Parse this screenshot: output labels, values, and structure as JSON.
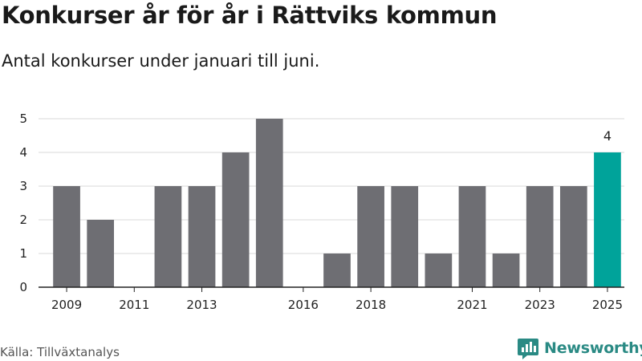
{
  "header": {
    "title": "Konkurser år för år i Rättviks kommun",
    "subtitle": "Antal konkurser under januari till juni."
  },
  "footer": {
    "source": "Källa: Tillväxtanalys",
    "brand": "Newsworthy",
    "brand_icon": "newsworthy-logo-icon"
  },
  "colors": {
    "bar": "#6e6e73",
    "highlight": "#00a39a",
    "grid": "#d9d9d9",
    "axis": "#222222",
    "brand": "#2a8a84"
  },
  "chart_data": {
    "type": "bar",
    "categories": [
      "2009",
      "2010",
      "2011",
      "2012",
      "2013",
      "2014",
      "2015",
      "2016",
      "2017",
      "2018",
      "2019",
      "2020",
      "2021",
      "2022",
      "2023",
      "2024",
      "2025"
    ],
    "values": [
      3,
      2,
      0,
      3,
      3,
      4,
      5,
      0,
      1,
      3,
      3,
      1,
      3,
      1,
      3,
      3,
      4
    ],
    "x_tick_labels": [
      "2009",
      "2011",
      "2013",
      "2016",
      "2018",
      "2021",
      "2023",
      "2025"
    ],
    "y_ticks": [
      0,
      1,
      2,
      3,
      4,
      5
    ],
    "ylim": [
      0,
      5
    ],
    "highlight_category": "2025",
    "annotations": [
      {
        "category": "2025",
        "text": "4"
      }
    ],
    "grid": true,
    "title": "Konkurser år för år i Rättviks kommun",
    "xlabel": "",
    "ylabel": ""
  }
}
